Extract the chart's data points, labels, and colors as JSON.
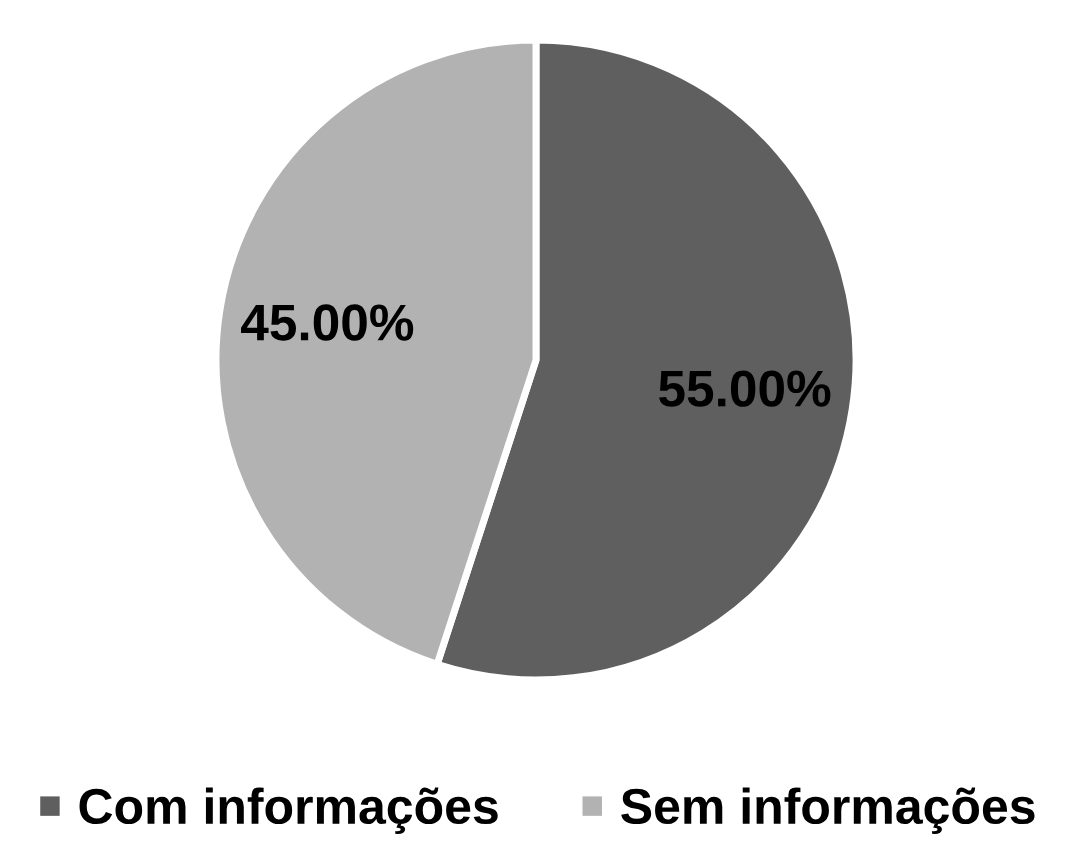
{
  "chart_data": {
    "type": "pie",
    "categories": [
      "Com informações",
      "Sem informações"
    ],
    "values": [
      55,
      45
    ],
    "colors": [
      "#5f5f5f",
      "#b2b2b2"
    ],
    "value_labels": [
      "55.00%",
      "45.00%"
    ],
    "legend": "bottom"
  }
}
